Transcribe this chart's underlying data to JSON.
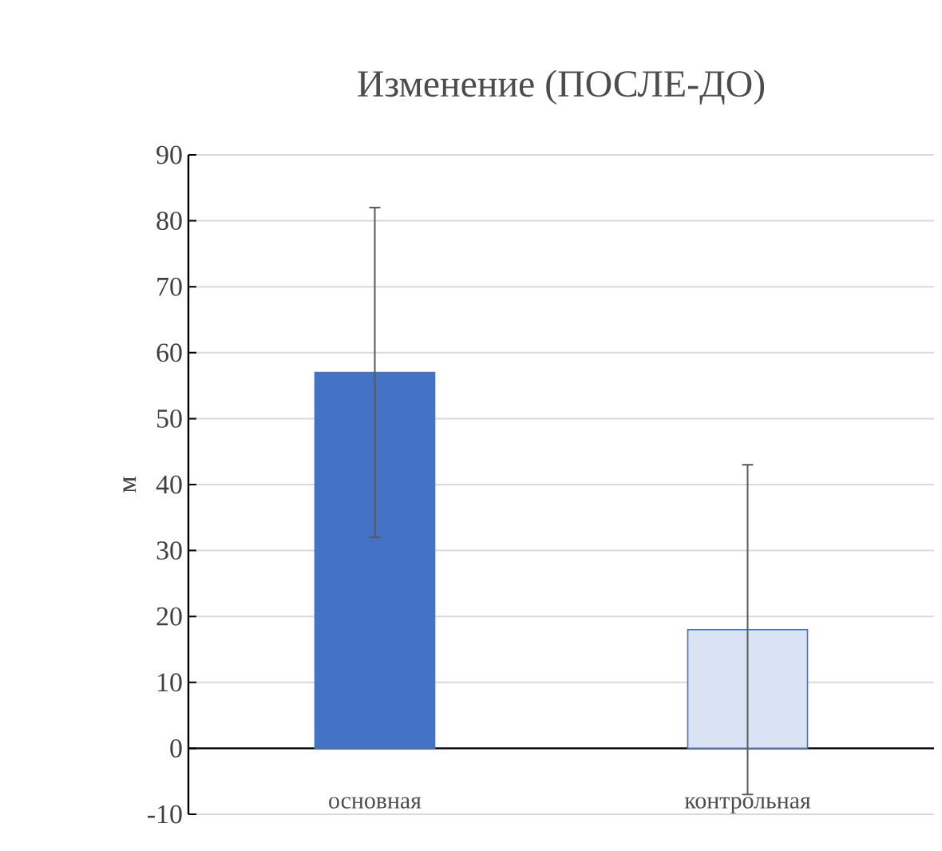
{
  "chart_data": {
    "type": "bar",
    "title": "Изменение (ПОСЛЕ-ДО)",
    "ylabel": "м",
    "categories": [
      "основная",
      "контрольная"
    ],
    "values": [
      57,
      18
    ],
    "errors": [
      25,
      25
    ],
    "colors": [
      "#4472c4",
      "#dae3f3"
    ],
    "ylim": [
      -10,
      90
    ],
    "yticks": [
      -10,
      0,
      10,
      20,
      30,
      40,
      50,
      60,
      70,
      80,
      90
    ],
    "grid": "y"
  }
}
